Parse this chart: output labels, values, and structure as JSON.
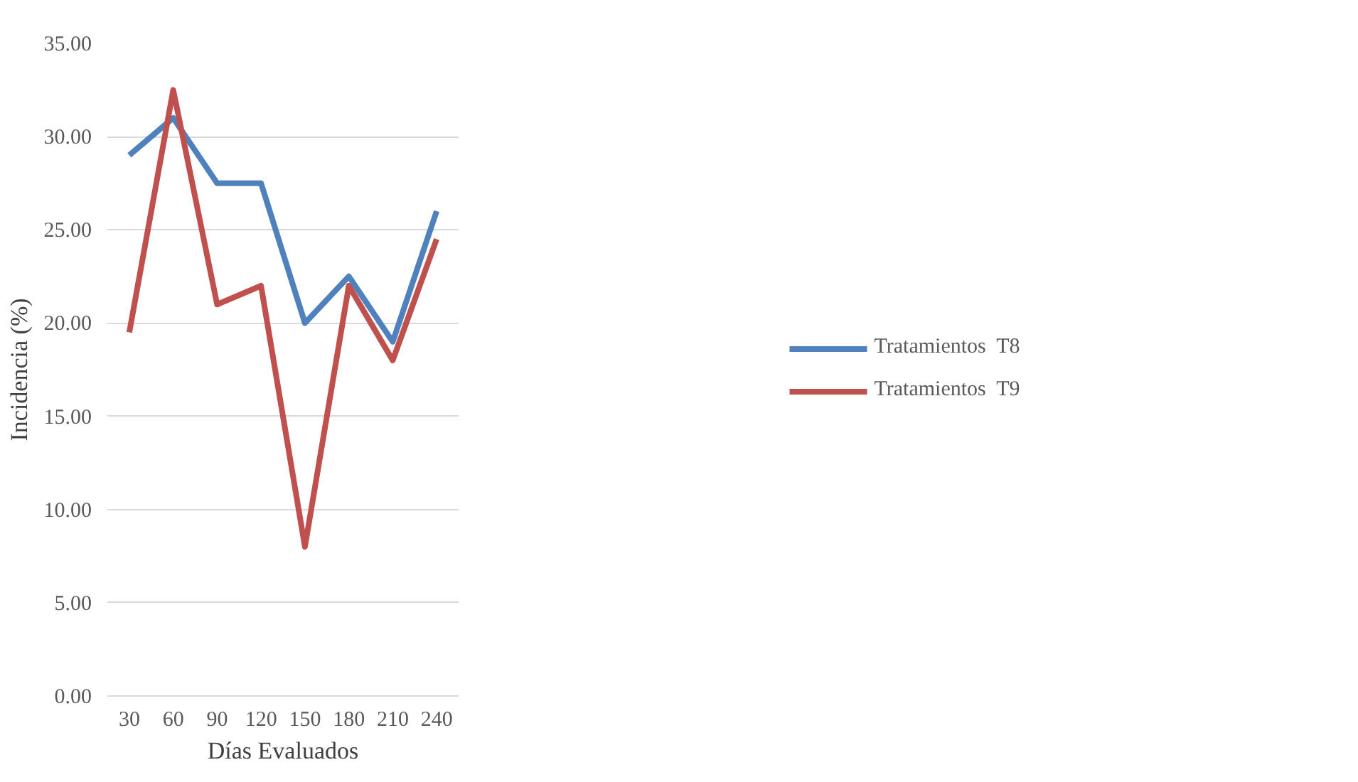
{
  "chart_data": {
    "type": "line",
    "xlabel": "Días Evaluados",
    "ylabel": "Incidencia (%)",
    "categories": [
      "30",
      "60",
      "90",
      "120",
      "150",
      "180",
      "210",
      "240"
    ],
    "series": [
      {
        "name": "Tratamientos  T8",
        "color": "#4f81bd",
        "values": [
          29,
          31,
          27.5,
          27.5,
          20,
          22.5,
          19,
          26
        ]
      },
      {
        "name": "Tratamientos  T9",
        "color": "#c0504d",
        "values": [
          19.5,
          32.5,
          21,
          22,
          8,
          22,
          18,
          24.5
        ]
      }
    ],
    "ylim": [
      0,
      35
    ],
    "yticks": [
      {
        "value": 0,
        "label": "0.00"
      },
      {
        "value": 5,
        "label": "5.00"
      },
      {
        "value": 10,
        "label": "10.00"
      },
      {
        "value": 15,
        "label": "15.00"
      },
      {
        "value": 20,
        "label": "20.00"
      },
      {
        "value": 25,
        "label": "25.00"
      },
      {
        "value": 30,
        "label": "30.00"
      },
      {
        "value": 35,
        "label": "35.00"
      }
    ],
    "grid": "y",
    "legend": "right",
    "marker": "none",
    "line_style": "solid"
  }
}
